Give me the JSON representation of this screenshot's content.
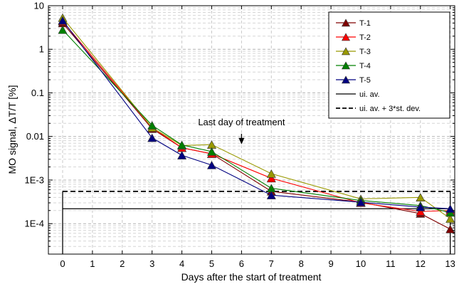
{
  "chart_data": {
    "type": "line",
    "xlabel": "Days after the start of treatment",
    "ylabel": "MO signal, ΔT/T [%]",
    "xlim": [
      -0.6,
      13.6
    ],
    "ylim": [
      2e-05,
      10
    ],
    "yscale": "log",
    "xticks": [
      0,
      1,
      2,
      3,
      4,
      5,
      6,
      7,
      8,
      9,
      10,
      11,
      12,
      13
    ],
    "yticks": [
      {
        "value": 0.0001,
        "label": "1E-4"
      },
      {
        "value": 0.001,
        "label": "1E-3"
      },
      {
        "value": 0.01,
        "label": "0.01"
      },
      {
        "value": 0.1,
        "label": "0.1"
      },
      {
        "value": 1,
        "label": "1"
      },
      {
        "value": 10,
        "label": "10"
      }
    ],
    "grid": "dashed gray, major and minor",
    "legend_position": "top-right",
    "series": [
      {
        "name": "T-1",
        "color": "#800000",
        "x": [
          0,
          3,
          4,
          5,
          7,
          10,
          12,
          13
        ],
        "y": [
          4.0,
          0.015,
          0.0055,
          0.004,
          0.00055,
          0.00031,
          0.00017,
          7.5e-05
        ]
      },
      {
        "name": "T-2",
        "color": "#ff0000",
        "x": [
          0,
          3,
          4,
          5,
          7,
          10,
          12,
          13
        ],
        "y": [
          4.4,
          0.016,
          0.0055,
          0.004,
          0.0011,
          0.0003,
          0.00019,
          0.0002
        ]
      },
      {
        "name": "T-3",
        "color": "#999900",
        "x": [
          0,
          3,
          4,
          5,
          7,
          10,
          12,
          13
        ],
        "y": [
          5.3,
          0.016,
          0.0062,
          0.0065,
          0.0014,
          0.00037,
          0.0004,
          0.00013
        ]
      },
      {
        "name": "T-4",
        "color": "#008000",
        "x": [
          0,
          3,
          4,
          5,
          7,
          10,
          12,
          13
        ],
        "y": [
          2.8,
          0.018,
          0.0064,
          0.0045,
          0.00065,
          0.00034,
          0.00026,
          0.00018
        ]
      },
      {
        "name": "T-5",
        "color": "#000080",
        "x": [
          0,
          3,
          4,
          5,
          7,
          10,
          12,
          13
        ],
        "y": [
          4.6,
          0.0093,
          0.0037,
          0.0022,
          0.00045,
          0.00031,
          0.00024,
          0.00022
        ]
      }
    ],
    "reference_lines": [
      {
        "name": "ui. av.",
        "style": "solid",
        "y": 0.00022,
        "x_range": [
          0,
          13
        ]
      },
      {
        "name": "ui. av. + 3*st. dev.",
        "style": "dashed",
        "y": 0.00055,
        "x_range": [
          0,
          13
        ]
      }
    ],
    "annotations": [
      {
        "text": "Last day of treatment",
        "arrow_x": 6,
        "arrow_y": 0.0066
      }
    ]
  }
}
